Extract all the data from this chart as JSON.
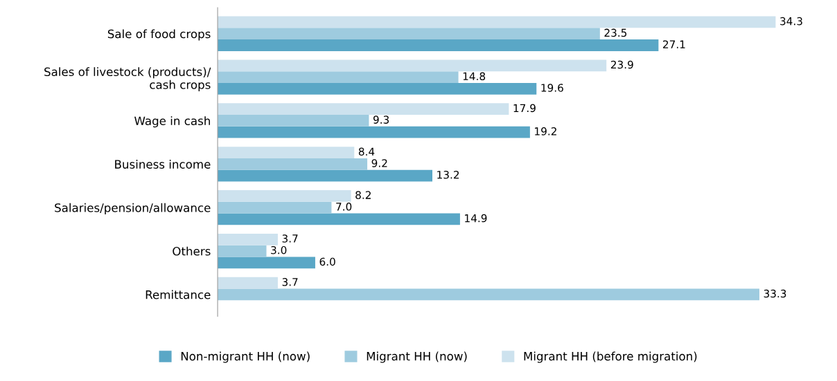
{
  "chart_data": {
    "type": "bar",
    "orientation": "horizontal",
    "categories": [
      "Sale of food crops",
      "Sales of livestock (products)/\ncash crops",
      "Wage in cash",
      "Business income",
      "Salaries/pension/allowance",
      "Others",
      "Remittance"
    ],
    "series": [
      {
        "name": "Non-migrant HH (now)",
        "color": "#5aa7c6",
        "values": [
          27.1,
          19.6,
          19.2,
          13.2,
          14.9,
          6,
          null
        ],
        "value_labels": [
          "27.1",
          "19.6",
          "19.2",
          "13.2",
          "14.9",
          "6.0",
          null
        ]
      },
      {
        "name": "Migrant HH (now)",
        "color": "#9ecbdf",
        "values": [
          23.5,
          14.8,
          9.3,
          9.2,
          7,
          3,
          33.3
        ],
        "value_labels": [
          "23.5",
          "14.8",
          "9.3",
          "9.2",
          "7.0",
          "3.0",
          "33.3"
        ]
      },
      {
        "name": "Migrant HH (before migration)",
        "color": "#cde2ee",
        "values": [
          34.3,
          23.9,
          17.9,
          8.4,
          8.2,
          3.7,
          3.7
        ],
        "value_labels": [
          "34.3",
          "23.9",
          "17.9",
          "8.4",
          "8.2",
          "3.7",
          "3.7"
        ]
      }
    ],
    "tick_labels": "y",
    "legend": "bottom",
    "grid": false
  }
}
